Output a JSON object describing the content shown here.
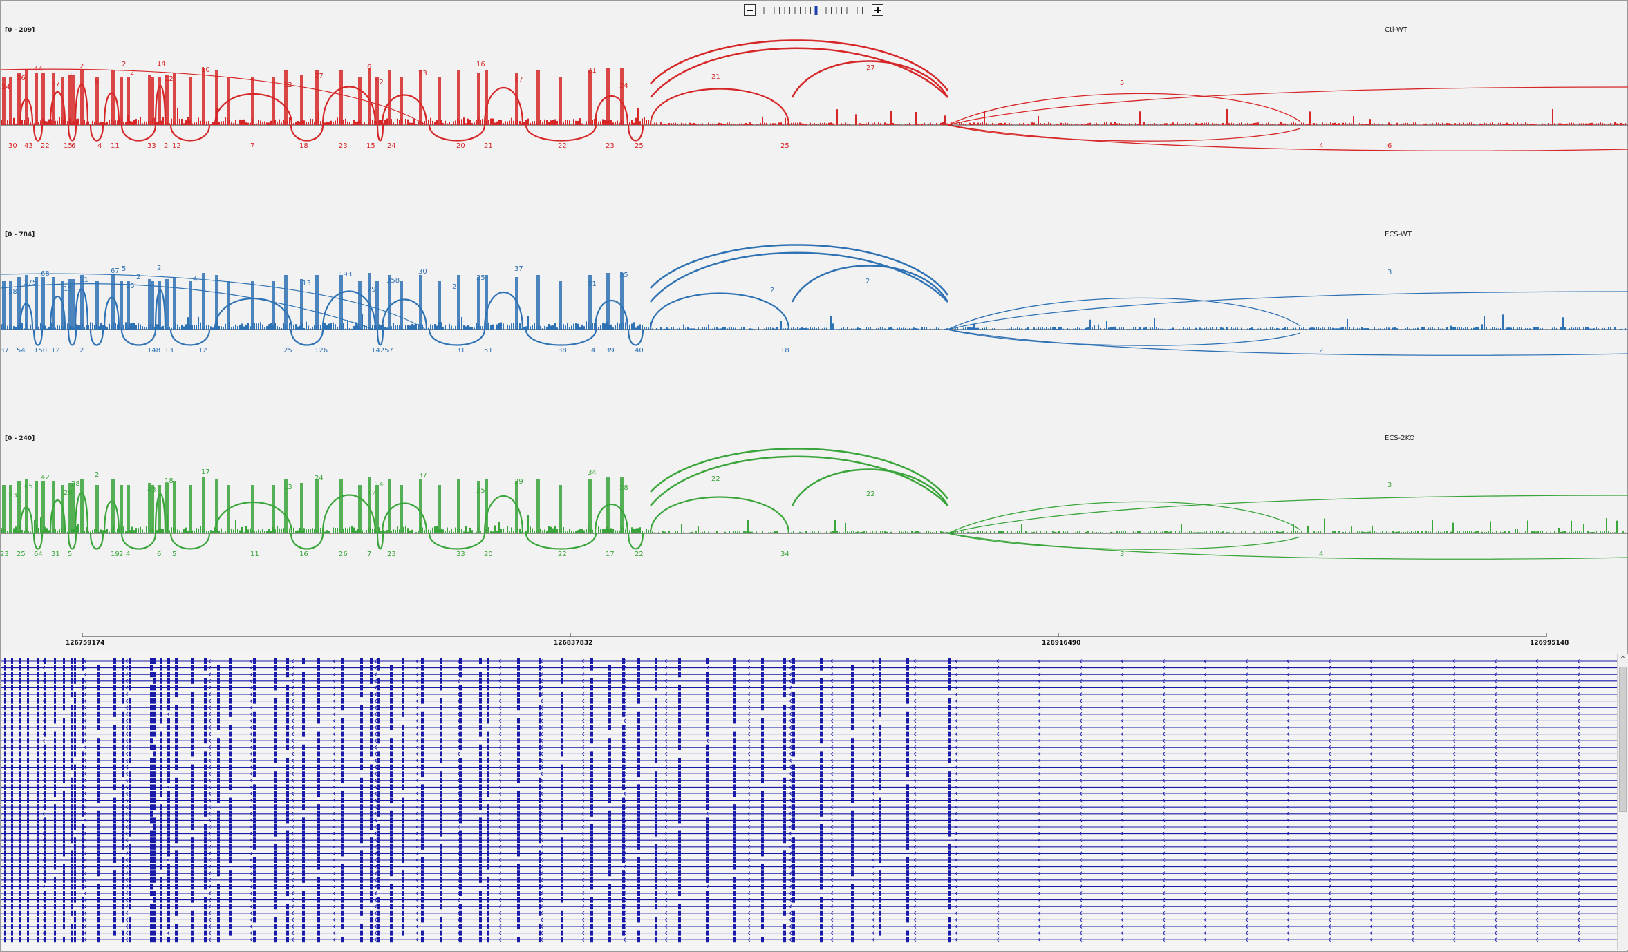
{
  "zoom": {
    "level": 10,
    "steps": 20,
    "minus_icon": "minus-icon",
    "plus_icon": "plus-icon"
  },
  "tracks": [
    {
      "name": "Ctl-WT",
      "range": "[0 - 209]",
      "color": "#d62728",
      "above_labels": [
        [
          "24",
          5
        ],
        [
          "26",
          27
        ],
        [
          "44",
          52
        ],
        [
          "27",
          77
        ],
        [
          "2",
          101
        ],
        [
          "2",
          118
        ],
        [
          "5",
          140
        ],
        [
          "2",
          191
        ],
        [
          "14",
          230
        ],
        [
          "12",
          241
        ],
        [
          "10",
          294
        ],
        [
          "12",
          413
        ],
        [
          "27",
          458
        ],
        [
          "6",
          534
        ],
        [
          "12",
          545
        ],
        [
          "23",
          608
        ],
        [
          "16",
          692
        ],
        [
          "17",
          747
        ],
        [
          "21",
          853
        ],
        [
          "24",
          899
        ],
        [
          "21",
          1032
        ],
        [
          "27",
          1256
        ],
        [
          "5",
          1623
        ]
      ],
      "below_labels": [
        [
          "30",
          15
        ],
        [
          "43",
          38
        ],
        [
          "22",
          62
        ],
        [
          "15",
          95
        ],
        [
          "6",
          106
        ],
        [
          "4",
          144
        ],
        [
          "11",
          163
        ],
        [
          "33",
          216
        ],
        [
          "2",
          240
        ],
        [
          "12",
          252
        ],
        [
          "7",
          365
        ],
        [
          "18",
          436
        ],
        [
          "23",
          493
        ],
        [
          "15",
          533
        ],
        [
          "24",
          563
        ],
        [
          "20",
          663
        ],
        [
          "21",
          703
        ],
        [
          "22",
          810
        ],
        [
          "23",
          879
        ],
        [
          "25",
          921
        ],
        [
          "25",
          1132
        ],
        [
          "4",
          1911
        ],
        [
          "6",
          2010
        ]
      ],
      "top_arc": [
        "2",
        175
      ]
    },
    {
      "name": "ECS-WT",
      "range": "[0 - 784]",
      "color": "#2f72b4",
      "above_labels": [
        [
          "58",
          15
        ],
        [
          "175",
          37
        ],
        [
          "68",
          62
        ],
        [
          "15",
          95
        ],
        [
          "11",
          118
        ],
        [
          "67",
          163
        ],
        [
          "35",
          185
        ],
        [
          "2",
          200
        ],
        [
          "2",
          230
        ],
        [
          "13",
          440
        ],
        [
          "193",
          493
        ],
        [
          "79",
          534
        ],
        [
          "358",
          562
        ],
        [
          "30",
          608
        ],
        [
          "2",
          657
        ],
        [
          "35",
          692
        ],
        [
          "37",
          747
        ],
        [
          "31",
          853
        ],
        [
          "55",
          899
        ],
        [
          "2",
          1117
        ],
        [
          "2",
          1255
        ],
        [
          "3",
          2010
        ]
      ],
      "below_labels": [
        [
          "37",
          3
        ],
        [
          "54",
          27
        ],
        [
          "150",
          52
        ],
        [
          "12",
          77
        ],
        [
          "2",
          118
        ],
        [
          "148",
          216
        ],
        [
          "13",
          241
        ],
        [
          "12",
          290
        ],
        [
          "25",
          413
        ],
        [
          "126",
          458
        ],
        [
          "14257",
          540
        ],
        [
          "31",
          663
        ],
        [
          "51",
          703
        ],
        [
          "38",
          810
        ],
        [
          "39",
          879
        ],
        [
          "40",
          921
        ],
        [
          "4",
          858
        ],
        [
          "18",
          1132
        ],
        [
          "2",
          1911
        ]
      ],
      "top_arc": [
        "5",
        175
      ],
      "mid_arc": [
        "4",
        278
      ]
    },
    {
      "name": "ECS-2KO",
      "range": "[0 - 240]",
      "color": "#3aa53a",
      "above_labels": [
        [
          "23",
          15
        ],
        [
          "65",
          38
        ],
        [
          "42",
          62
        ],
        [
          "26",
          95
        ],
        [
          "28",
          106
        ],
        [
          "2",
          140
        ],
        [
          "43",
          216
        ],
        [
          "18",
          241
        ],
        [
          "17",
          294
        ],
        [
          "13",
          413
        ],
        [
          "24",
          458
        ],
        [
          "12",
          534
        ],
        [
          "14",
          545
        ],
        [
          "37",
          608
        ],
        [
          "25",
          692
        ],
        [
          "29",
          747
        ],
        [
          "34",
          853
        ],
        [
          "28",
          899
        ],
        [
          "22",
          1032
        ],
        [
          "22",
          1256
        ],
        [
          "3",
          2010
        ]
      ],
      "below_labels": [
        [
          "23",
          3
        ],
        [
          "25",
          27
        ],
        [
          "64",
          52
        ],
        [
          "31",
          77
        ],
        [
          "5",
          101
        ],
        [
          "19",
          163
        ],
        [
          "2",
          175
        ],
        [
          "4",
          185
        ],
        [
          "6",
          230
        ],
        [
          "5",
          252
        ],
        [
          "11",
          365
        ],
        [
          "16",
          436
        ],
        [
          "26",
          493
        ],
        [
          "7",
          534
        ],
        [
          "23",
          563
        ],
        [
          "33",
          663
        ],
        [
          "20",
          703
        ],
        [
          "22",
          810
        ],
        [
          "17",
          879
        ],
        [
          "22",
          921
        ],
        [
          "34",
          1132
        ],
        [
          "3",
          1623
        ],
        [
          "4",
          1911
        ]
      ]
    }
  ],
  "axis": {
    "ticks": [
      "126759174",
      "126837832",
      "126916490",
      "126995148"
    ]
  },
  "exon_positions": [
    5,
    15,
    27,
    38,
    52,
    62,
    77,
    90,
    101,
    106,
    118,
    140,
    163,
    175,
    185,
    216,
    220,
    230,
    241,
    252,
    275,
    294,
    313,
    330,
    365,
    395,
    413,
    436,
    458,
    493,
    520,
    534,
    545,
    563,
    580,
    608,
    635,
    663,
    692,
    703,
    747,
    778,
    810,
    853,
    879,
    899,
    921,
    946,
    980,
    1020,
    1060,
    1100,
    1132,
    1145,
    1185,
    1230,
    1270,
    1310,
    1370,
    1420,
    1470,
    1520,
    1570,
    1620,
    1670,
    1720,
    1780,
    1830,
    1880,
    1930,
    1980,
    2030,
    2080,
    2130,
    2180,
    2230,
    2280,
    2320
  ]
}
